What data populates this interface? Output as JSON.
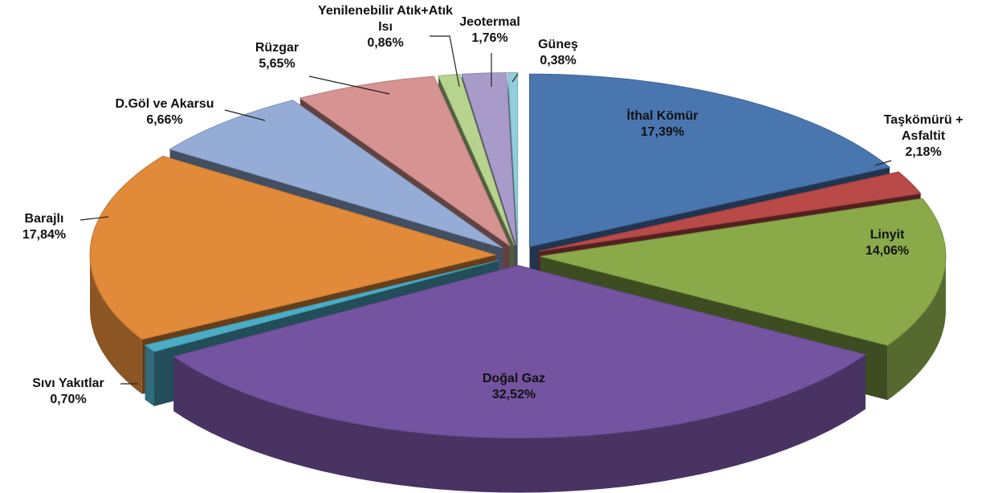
{
  "chart_data": {
    "type": "pie",
    "categories": [
      "İthal Kömür",
      "Taşkömürü + Asfaltit",
      "Linyit",
      "Doğal Gaz",
      "Sıvı Yakıtlar",
      "Barajlı",
      "D.Göl ve Akarsu",
      "Rüzgar",
      "Yenilenebilir Atık+Atık Isı",
      "Jeotermal",
      "Güneş"
    ],
    "values": [
      17.39,
      2.18,
      14.06,
      32.52,
      0.7,
      17.84,
      6.66,
      5.65,
      0.86,
      1.76,
      0.38
    ],
    "value_labels": [
      "17,39%",
      "2,18%",
      "14,06%",
      "32,52%",
      "0,70%",
      "17,84%",
      "6,66%",
      "5,65%",
      "0,86%",
      "1,76%",
      "0,38%"
    ],
    "colors": [
      "#4a76b0",
      "#b94a48",
      "#8aaa4a",
      "#7453a0",
      "#4bacc6",
      "#e08a3a",
      "#95add6",
      "#d69391",
      "#b7d48e",
      "#a99bc9",
      "#92cddc"
    ]
  }
}
